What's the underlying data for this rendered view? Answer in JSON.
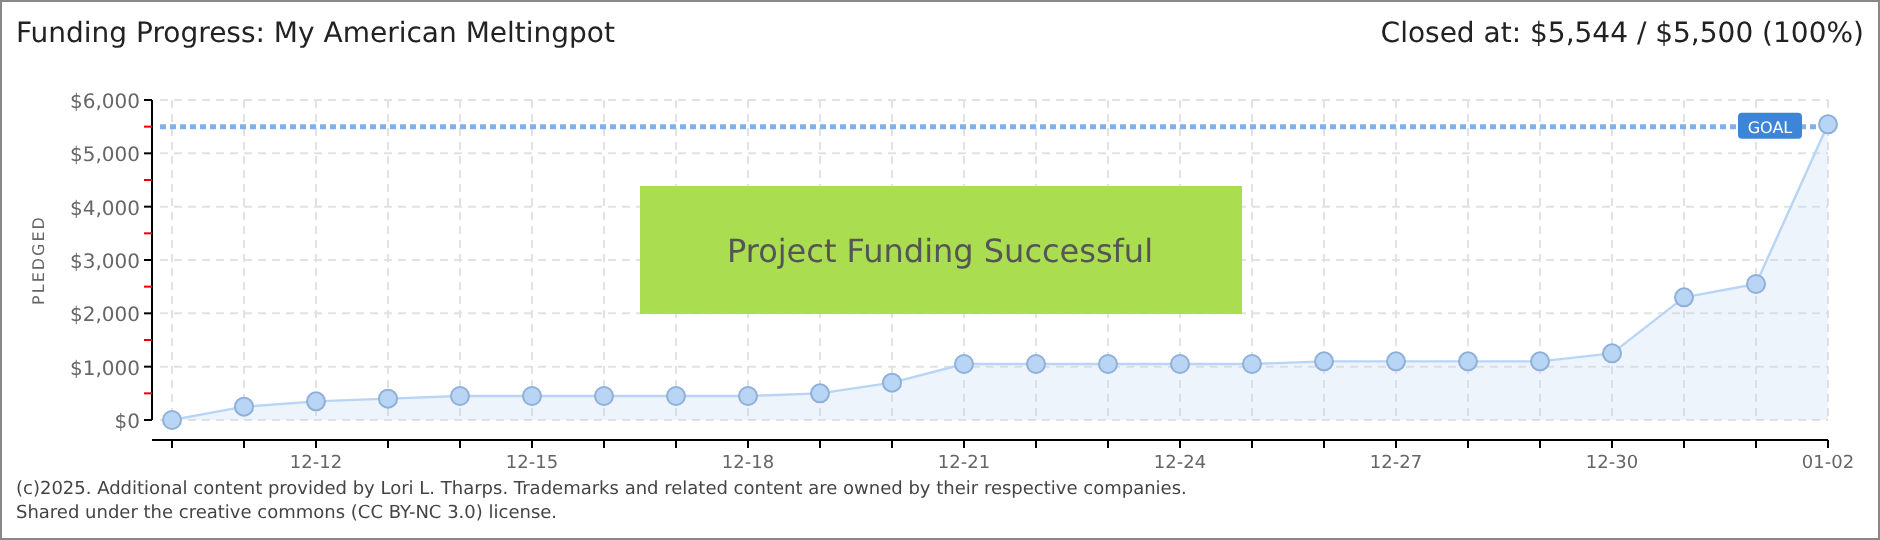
{
  "chart_data": {
    "type": "area",
    "title": "Funding Progress: My American Meltingpot",
    "subtitle": "Closed at: $5,544 / $5,500 (100%)",
    "ylabel": "PLEDGED",
    "categories": [
      null,
      null,
      "12-12",
      null,
      null,
      "12-15",
      null,
      null,
      "12-18",
      null,
      null,
      "12-21",
      null,
      null,
      "12-24",
      null,
      null,
      "12-27",
      null,
      null,
      "12-30",
      null,
      null,
      "01-02"
    ],
    "series": [
      {
        "color": "#b9d5f5",
        "values": [
          0,
          250,
          350,
          400,
          450,
          450,
          450,
          450,
          450,
          500,
          700,
          1050,
          1050,
          1050,
          1050,
          1050,
          1100,
          1100,
          1100,
          1100,
          1250,
          2300,
          2550,
          5544
        ]
      }
    ],
    "ylim": [
      0,
      6000
    ],
    "yticks": [
      {
        "value": 0,
        "label": "$0"
      },
      {
        "value": 500,
        "label": null
      },
      {
        "value": 1000,
        "label": "$1,000"
      },
      {
        "value": 1500,
        "label": null
      },
      {
        "value": 2000,
        "label": "$2,000"
      },
      {
        "value": 2500,
        "label": null
      },
      {
        "value": 3000,
        "label": "$3,000"
      },
      {
        "value": 3500,
        "label": null
      },
      {
        "value": 4000,
        "label": "$4,000"
      },
      {
        "value": 4500,
        "label": null
      },
      {
        "value": 5000,
        "label": "$5,000"
      },
      {
        "value": 5500,
        "label": null
      },
      {
        "value": 6000,
        "label": "$6,000"
      }
    ],
    "ref_lines": [
      {
        "axis": "y",
        "value": 5500,
        "label": "GOAL",
        "color": "#7fb2ea",
        "line_style": "dotted"
      }
    ],
    "annotations": [
      "Project Funding Successful",
      "(c)2025. Additional content provided by Lori L. Tharps. Trademarks and related content are owned by their respective companies.",
      "Shared under the creative commons (CC BY-NC 3.0) license."
    ],
    "grid": true,
    "marker": "circle"
  }
}
